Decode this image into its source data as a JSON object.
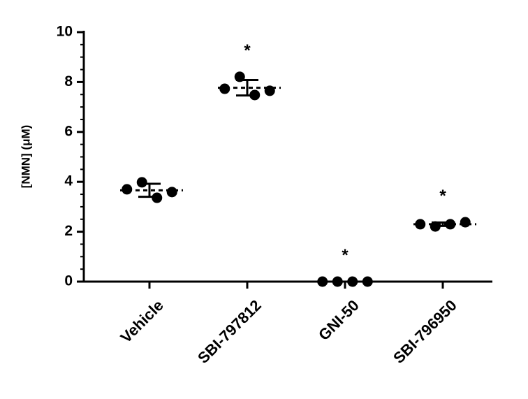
{
  "chart_data": {
    "type": "dotplot",
    "ylabel": "[NMN] (μM)",
    "categories": [
      "Vehicle",
      "SBI-797812",
      "GNI-50",
      "SBI-796950"
    ],
    "points": [
      [
        3.7,
        3.98,
        3.36,
        3.59
      ],
      [
        7.73,
        8.21,
        7.48,
        7.65
      ],
      [
        0,
        0,
        0,
        0
      ],
      [
        2.3,
        2.21,
        2.3,
        2.38
      ]
    ],
    "mean": [
      3.66,
      7.77,
      0,
      2.3
    ],
    "sd": [
      0.26,
      0.31,
      0,
      0.07
    ],
    "annotations": [
      null,
      "*",
      "*",
      "*"
    ],
    "color": "#000000",
    "ylim": [
      0,
      10
    ],
    "yticks": [
      0,
      2,
      4,
      6,
      8,
      10
    ],
    "yminorticks": [
      0.5,
      1,
      1.5,
      2.5,
      3,
      3.5,
      4.5,
      5,
      5.5,
      6.5,
      7,
      7.5,
      8.5,
      9,
      9.5
    ]
  }
}
